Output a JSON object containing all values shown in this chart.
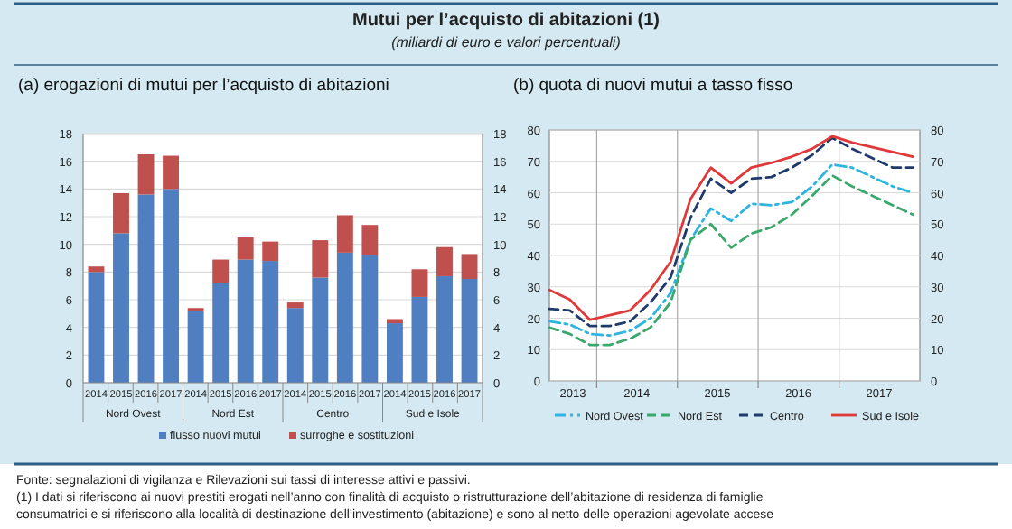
{
  "chart_data": [
    {
      "type": "other",
      "title": "Mutui per l’acquisto di abitazioni (1)",
      "subtitle": "(miliardi di euro e valori percentuali)",
      "annotations": [
        "Fonte: segnalazioni di vigilanza e Rilevazioni sui tassi di interesse attivi e passivi.",
        "(1) I dati si riferiscono ai nuovi prestiti erogati nell’anno con finalità di acquisto o ristrutturazione dell’abitazione di residenza di famiglie consumatrici e si riferiscono alla località di destinazione dell’investimento (abitazione) e sono al netto delle operazioni agevolate accese"
      ]
    },
    {
      "type": "bar",
      "title": "(a) erogazioni di mutui per l’acquisto di abitazioni",
      "stacked": true,
      "grid": "y",
      "legend": "bottom",
      "categories": [
        "2014",
        "2015",
        "2016",
        "2017",
        "2014",
        "2015",
        "2016",
        "2017",
        "2014",
        "2015",
        "2016",
        "2017",
        "2014",
        "2015",
        "2016",
        "2017"
      ],
      "annotations": [
        "Nord Ovest",
        "Nord Est",
        "Centro",
        "Sud e Isole"
      ],
      "series": [
        {
          "name": "flusso nuovi mutui",
          "color": "#4f7fc0",
          "values": [
            8.0,
            10.8,
            13.6,
            14.0,
            5.2,
            7.2,
            8.9,
            8.8,
            5.4,
            7.6,
            9.4,
            9.2,
            4.3,
            6.2,
            7.7,
            7.5
          ]
        },
        {
          "name": "surroghe e sostituzioni",
          "color": "#c0504d",
          "values": [
            0.4,
            2.9,
            2.9,
            2.4,
            0.2,
            1.7,
            1.6,
            1.4,
            0.4,
            2.7,
            2.7,
            2.2,
            0.3,
            2.0,
            2.1,
            1.8
          ]
        }
      ],
      "ylim": [
        0,
        18
      ],
      "yticks": [
        0,
        2,
        4,
        6,
        8,
        10,
        12,
        14,
        16,
        18
      ],
      "y2lim": [
        0,
        18
      ],
      "y2ticks": [
        0,
        2,
        4,
        6,
        8,
        10,
        12,
        14,
        16,
        18
      ]
    },
    {
      "type": "line",
      "title": "(b) quota di nuovi mutui a tasso fisso",
      "grid": true,
      "legend": "bottom",
      "x": [
        "2013-06",
        "2013-09",
        "2013-12",
        "2014-03",
        "2014-06",
        "2014-09",
        "2014-12",
        "2015-03",
        "2015-06",
        "2015-09",
        "2015-12",
        "2016-03",
        "2016-06",
        "2016-09",
        "2016-12",
        "2017-03",
        "2017-06",
        "2017-09",
        "2017-12"
      ],
      "series": [
        {
          "name": "Nord Ovest",
          "color": "#2fb4e0",
          "line_style": "dashdot",
          "values": [
            19,
            18,
            15,
            14.5,
            16,
            20,
            28,
            45,
            55,
            51,
            56.5,
            56,
            57,
            62,
            69,
            68,
            65,
            62,
            60
          ]
        },
        {
          "name": "Nord Est",
          "color": "#3aa86a",
          "line_style": "dashed",
          "values": [
            17,
            15,
            11.5,
            11.5,
            13.5,
            17,
            25,
            45,
            50,
            42.5,
            47,
            49,
            53,
            59,
            65.5,
            62,
            59,
            56,
            53
          ]
        },
        {
          "name": "Centro",
          "color": "#1f3a6b",
          "line_style": "dashed",
          "values": [
            23,
            22.5,
            17.5,
            17.5,
            19,
            25,
            33,
            52,
            64.5,
            60,
            64.5,
            65,
            68,
            72,
            77.5,
            74,
            71,
            68,
            68
          ]
        },
        {
          "name": "Sud e Isole",
          "color": "#e0393a",
          "line_style": "solid",
          "values": [
            29,
            26,
            19.5,
            21,
            22.5,
            29,
            38,
            58,
            68,
            63,
            68,
            69.5,
            71.5,
            74,
            78,
            76,
            74.5,
            73,
            71.5
          ]
        }
      ],
      "xlim": [
        "2013-06",
        "2018-01"
      ],
      "xticks": [
        {
          "value": "2014-01",
          "label": null
        },
        {
          "value": "2015-01",
          "label": null
        },
        {
          "value": "2016-01",
          "label": null
        },
        {
          "value": "2017-01",
          "label": null
        },
        {
          "value": "2013-09-15",
          "label": "2013"
        },
        {
          "value": "2014-07",
          "label": "2014"
        },
        {
          "value": "2015-07",
          "label": "2015"
        },
        {
          "value": "2016-07",
          "label": "2016"
        },
        {
          "value": "2017-07",
          "label": "2017"
        }
      ],
      "ylim": [
        0,
        80
      ],
      "yticks": [
        0,
        10,
        20,
        30,
        40,
        50,
        60,
        70,
        80
      ],
      "y2lim": [
        0,
        80
      ],
      "y2ticks": [
        0,
        10,
        20,
        30,
        40,
        50,
        60,
        70,
        80
      ]
    }
  ]
}
